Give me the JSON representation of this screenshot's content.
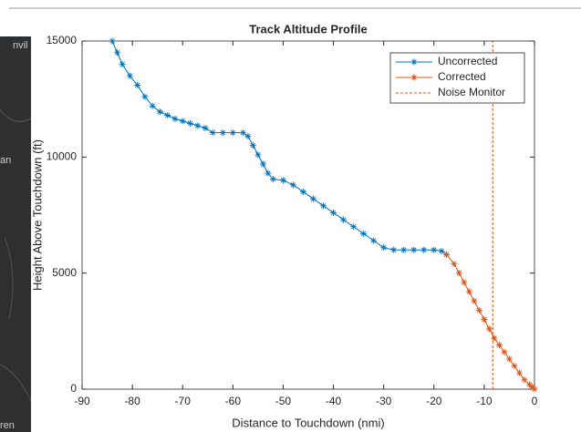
{
  "map_labels": [
    "nvil",
    "an",
    "ren"
  ],
  "chart_data": {
    "type": "line",
    "title": "Track Altitude Profile",
    "x_label": "Distance to Touchdown (nmi)",
    "y_label": "Height Above Touchdown (ft)",
    "xlim": [
      -90,
      0
    ],
    "ylim": [
      0,
      15000
    ],
    "xticks": [
      -90,
      -80,
      -70,
      -60,
      -50,
      -40,
      -30,
      -20,
      -10,
      0
    ],
    "yticks": [
      0,
      5000,
      10000,
      15000
    ],
    "grid": false,
    "legend": "upper right",
    "series": [
      {
        "name": "Uncorrected",
        "color": "#0072BD",
        "marker": "*",
        "line_style": "solid",
        "x": [
          -84,
          -83,
          -82,
          -80.5,
          -79,
          -77.5,
          -76,
          -74.5,
          -73,
          -71.5,
          -70,
          -68.5,
          -67,
          -65.5,
          -64,
          -62,
          -60,
          -58,
          -57,
          -56,
          -55,
          -54,
          -53,
          -52,
          -50,
          -48,
          -46,
          -44,
          -42,
          -40,
          -38,
          -36,
          -34,
          -32,
          -30,
          -28,
          -26,
          -24,
          -22,
          -20,
          -18.5,
          -17.5
        ],
        "values": [
          15000,
          14500,
          14000,
          13500,
          13100,
          12600,
          12200,
          11950,
          11800,
          11650,
          11550,
          11450,
          11350,
          11250,
          11050,
          11050,
          11050,
          11050,
          10900,
          10500,
          10100,
          9700,
          9300,
          9050,
          9000,
          8800,
          8500,
          8200,
          7900,
          7600,
          7300,
          7000,
          6700,
          6400,
          6100,
          6000,
          6000,
          6000,
          6000,
          6000,
          5950,
          5800
        ]
      },
      {
        "name": "Corrected",
        "color": "#D95319",
        "marker": "*",
        "line_style": "solid",
        "x": [
          -17.5,
          -16,
          -15,
          -14,
          -13,
          -12,
          -11,
          -10,
          -9,
          -8,
          -7,
          -6,
          -5,
          -4,
          -3,
          -2,
          -1,
          -0.5,
          0
        ],
        "values": [
          5800,
          5400,
          5000,
          4600,
          4200,
          3800,
          3400,
          3000,
          2600,
          2200,
          1900,
          1600,
          1300,
          1000,
          700,
          400,
          200,
          100,
          0
        ]
      },
      {
        "name": "Noise Monitor",
        "color": "#D95319",
        "marker": "none",
        "line_style": "dashed",
        "x": [
          -8.3,
          -8.3
        ],
        "values": [
          0,
          15000
        ]
      }
    ]
  }
}
